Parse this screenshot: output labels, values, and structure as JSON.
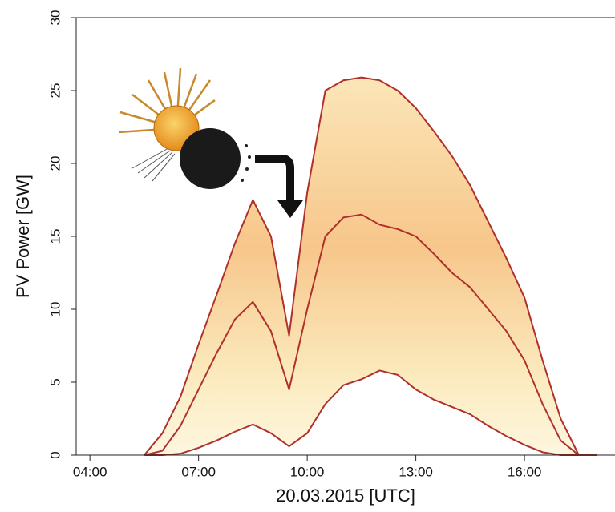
{
  "chart_data": {
    "type": "line",
    "xlabel": "20.03.2015 [UTC]",
    "ylabel": "PV Power [GW]",
    "x": [
      5.5,
      6,
      6.5,
      7,
      7.5,
      8,
      8.5,
      9,
      9.5,
      10,
      10.5,
      11,
      11.5,
      12,
      12.5,
      13,
      13.5,
      14,
      14.5,
      15,
      15.5,
      16,
      16.5,
      17,
      17.5,
      18
    ],
    "series": [
      {
        "color": "#b0302c",
        "values": [
          0,
          1.5,
          4,
          7.6,
          11,
          14.5,
          17.5,
          15,
          8.2,
          18,
          25,
          25.7,
          25.9,
          25.7,
          25,
          23.8,
          22.2,
          20.5,
          18.5,
          16,
          13.5,
          10.8,
          6.5,
          2.5,
          0,
          0
        ]
      },
      {
        "color": "#b0302c",
        "values": [
          0,
          0.3,
          2,
          4.5,
          7,
          9.3,
          10.5,
          8.5,
          4.5,
          10,
          15,
          16.3,
          16.5,
          15.8,
          15.5,
          15,
          13.8,
          12.5,
          11.5,
          10,
          8.5,
          6.5,
          3.5,
          1,
          0,
          0
        ]
      },
      {
        "color": "#b0302c",
        "values": [
          0,
          0,
          0.1,
          0.5,
          1,
          1.6,
          2.1,
          1.5,
          0.6,
          1.5,
          3.5,
          4.8,
          5.2,
          5.8,
          5.5,
          4.5,
          3.8,
          3.3,
          2.8,
          2,
          1.3,
          0.7,
          0.2,
          0,
          0,
          0
        ]
      }
    ],
    "xlim": [
      3.62,
      18.5
    ],
    "xticks": [
      {
        "value": 4,
        "label": "04:00"
      },
      {
        "value": 7,
        "label": "07:00"
      },
      {
        "value": 10,
        "label": "10:00"
      },
      {
        "value": 13,
        "label": "13:00"
      },
      {
        "value": 16,
        "label": "16:00"
      }
    ],
    "ylim": [
      0,
      30
    ],
    "yticks": [
      0,
      5,
      10,
      15,
      20,
      25,
      30
    ]
  }
}
